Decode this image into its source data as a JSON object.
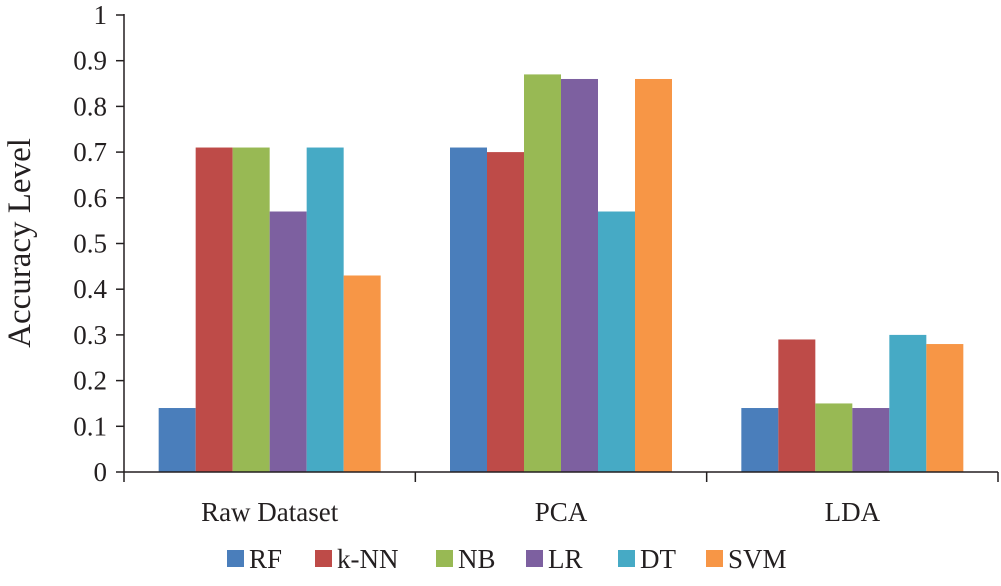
{
  "chart_data": {
    "type": "bar",
    "title": "",
    "xlabel": "",
    "ylabel": "Accuracy Level",
    "ylim": [
      0,
      1
    ],
    "yticks": [
      "0",
      "0.1",
      "0.2",
      "0.3",
      "0.4",
      "0.5",
      "0.6",
      "0.7",
      "0.8",
      "0.9",
      "1"
    ],
    "grid": false,
    "legend_position": "bottom",
    "categories": [
      "Raw Dataset",
      "PCA",
      "LDA"
    ],
    "series": [
      {
        "name": "RF",
        "color": "#4a7ebb",
        "values": [
          0.14,
          0.71,
          0.14
        ]
      },
      {
        "name": "k-NN",
        "color": "#be4b48",
        "values": [
          0.71,
          0.7,
          0.29
        ]
      },
      {
        "name": "NB",
        "color": "#98b954",
        "values": [
          0.71,
          0.87,
          0.15
        ]
      },
      {
        "name": "LR",
        "color": "#7d60a0",
        "values": [
          0.57,
          0.86,
          0.14
        ]
      },
      {
        "name": "DT",
        "color": "#46aac5",
        "values": [
          0.71,
          0.57,
          0.3
        ]
      },
      {
        "name": "SVM",
        "color": "#f79646",
        "values": [
          0.43,
          0.86,
          0.28
        ]
      }
    ]
  }
}
